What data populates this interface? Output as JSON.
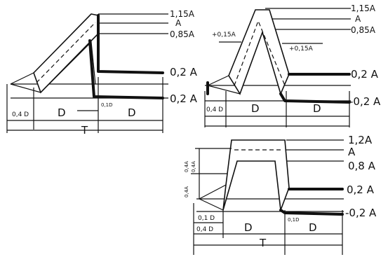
{
  "diagram1": {
    "level_labels": [
      "1,15A",
      "A",
      "0,85A",
      "0,2 A",
      "0,2 A"
    ],
    "dim_labels": {
      "zero_four_d": "0,4 D",
      "d_left": "D",
      "point_one_d": "0,1D",
      "d_right": "D",
      "t": "T"
    }
  },
  "diagram2": {
    "level_labels": [
      "1,15A",
      "A",
      "0,85A",
      "0,2 A",
      "-0,2 A"
    ],
    "slope_labels": [
      "+0,15A",
      "+0,15A"
    ],
    "dim_labels": {
      "zero_four_d": "0,4 D",
      "d_left": "D",
      "d_right": "D"
    }
  },
  "diagram3": {
    "level_labels": [
      "1,2A",
      "A",
      "0,8 A",
      "0,2 A",
      "-0,2 A"
    ],
    "vertical_labels": [
      "0,4A",
      "0,4A",
      "0,4A"
    ],
    "dim_labels": {
      "point_one_d": "0,1 D",
      "zero_four_d": "0,4 D",
      "d_mid": "D",
      "point_one_d_right": "0,1D",
      "d_right": "D",
      "t": "T"
    }
  }
}
